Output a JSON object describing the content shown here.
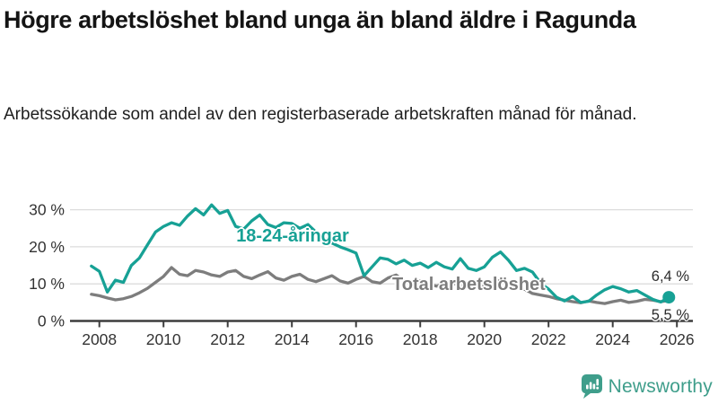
{
  "header": {
    "title": "Högre arbetslöshet bland unga än bland äldre i Ragunda",
    "subtitle": "Arbetssökande som andel av den registerbaserade arbetskraften månad för månad."
  },
  "chart_data": {
    "type": "line",
    "title": "Högre arbetslöshet bland unga än bland äldre i Ragunda",
    "x_start": 2007.75,
    "x_step": 0.25,
    "x_axis": {
      "ticks": [
        2008,
        2010,
        2012,
        2014,
        2016,
        2018,
        2020,
        2022,
        2024,
        2026
      ],
      "range": [
        2007.1,
        2026.5
      ]
    },
    "y_axis": {
      "ticks": [
        0,
        10,
        20,
        30
      ],
      "suffix": " %",
      "range": [
        0,
        33
      ]
    },
    "grid": true,
    "legend": "inline-labels",
    "series": [
      {
        "name": "18-24-åringar",
        "color": "#17a195",
        "end_label": "6,4 %",
        "end_value": 6.4,
        "values": [
          14.8,
          13.4,
          7.8,
          11.0,
          10.4,
          15.0,
          17.0,
          20.5,
          24.0,
          25.5,
          26.5,
          25.8,
          28.3,
          30.3,
          28.6,
          31.3,
          29.0,
          29.8,
          25.5,
          24.8,
          27.0,
          28.6,
          26.0,
          25.2,
          26.5,
          26.3,
          25.0,
          26.0,
          24.0,
          22.5,
          21.0,
          20.0,
          19.2,
          18.3,
          12.2,
          14.6,
          17.0,
          16.6,
          15.4,
          16.4,
          15.0,
          15.6,
          14.4,
          15.8,
          14.6,
          14.0,
          16.8,
          14.2,
          13.6,
          14.6,
          17.2,
          18.6,
          16.4,
          13.6,
          14.2,
          13.2,
          10.2,
          8.6,
          6.4,
          5.4,
          6.6,
          5.0,
          5.3,
          7.0,
          8.4,
          9.3,
          8.7,
          7.8,
          8.2,
          7.0,
          5.8,
          5.1,
          6.4
        ]
      },
      {
        "name": "Total arbetslöshet",
        "color": "#7d7d7d",
        "end_label": "5,5 %",
        "end_value": 5.5,
        "values": [
          7.2,
          6.8,
          6.2,
          5.7,
          6.0,
          6.6,
          7.6,
          8.8,
          10.4,
          12.0,
          14.4,
          12.6,
          12.2,
          13.6,
          13.2,
          12.4,
          12.0,
          13.2,
          13.6,
          12.0,
          11.4,
          12.4,
          13.3,
          11.6,
          11.0,
          12.0,
          12.6,
          11.2,
          10.6,
          11.4,
          12.2,
          10.8,
          10.2,
          11.2,
          12.0,
          10.6,
          10.2,
          11.6,
          12.4,
          10.8,
          10.2,
          10.8,
          10.0,
          9.4,
          9.8,
          10.2,
          9.6,
          9.0,
          9.4,
          9.8,
          10.6,
          10.9,
          10.2,
          9.4,
          8.6,
          7.4,
          7.0,
          6.6,
          6.0,
          5.6,
          5.2,
          4.9,
          5.4,
          5.0,
          4.7,
          5.2,
          5.6,
          5.0,
          5.3,
          5.8,
          5.6,
          5.2,
          5.5
        ]
      }
    ]
  },
  "colors": {
    "young_line": "#17a195",
    "total_line": "#7d7d7d",
    "grid": "#dcdcdc",
    "axis": "#3d3d3d",
    "tick_label": "#333333",
    "brand": "#3f9e8b"
  },
  "footer": {
    "brand": "Newsworthy",
    "logo_icon": "bar-chart-speech-bubble-icon"
  }
}
